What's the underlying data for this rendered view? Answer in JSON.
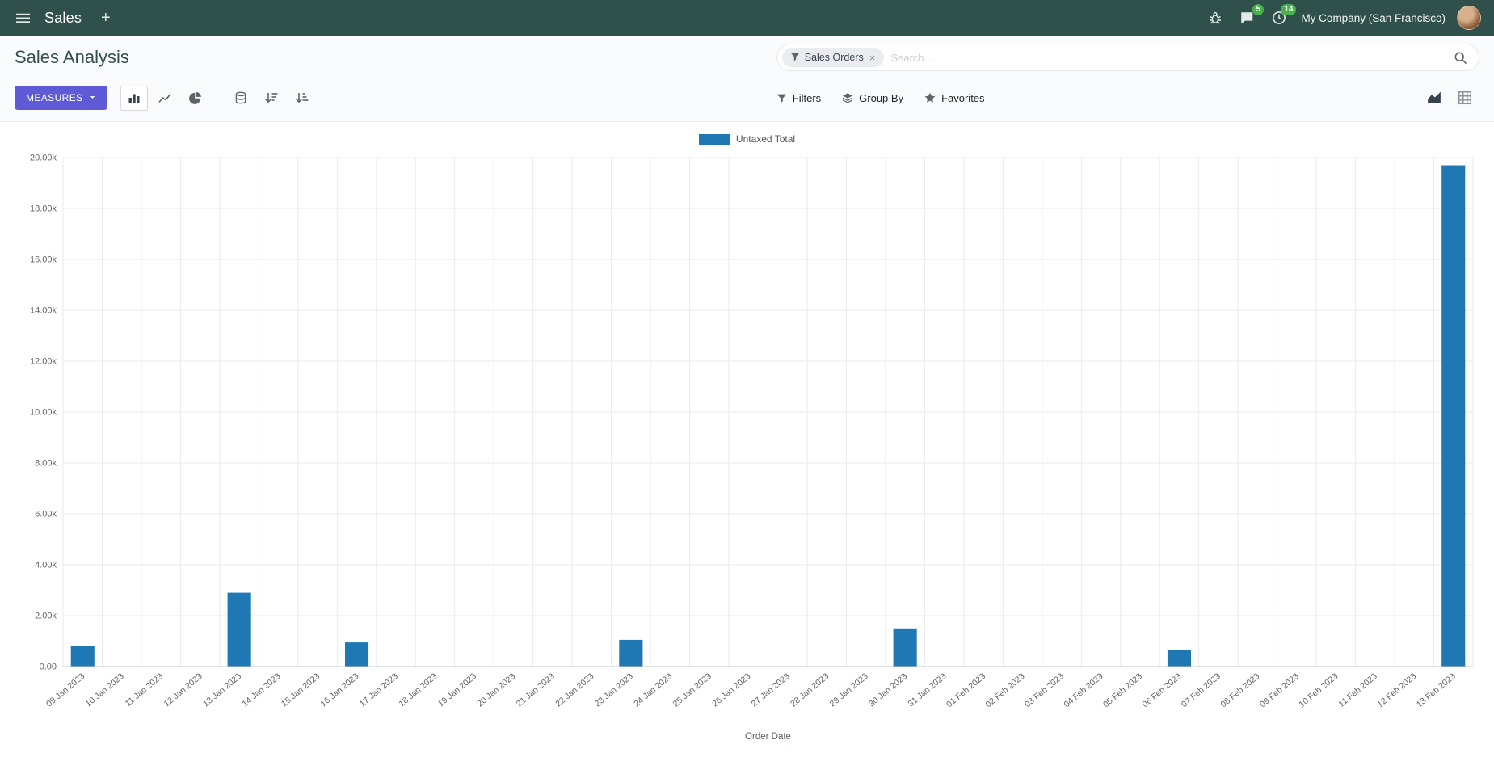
{
  "navbar": {
    "app_name": "Sales",
    "plus_label": "+",
    "company": "My Company (San Francisco)",
    "messages_badge": "5",
    "activities_badge": "14"
  },
  "control_panel": {
    "title": "Sales Analysis",
    "measures_label": "MEASURES",
    "filters_label": "Filters",
    "group_by_label": "Group By",
    "favorites_label": "Favorites",
    "search": {
      "facet_label": "Sales Orders",
      "remove_symbol": "×",
      "placeholder": "Search..."
    }
  },
  "colors": {
    "navbar": "#30504b",
    "primary_button": "#5f5bd7",
    "badge": "#47b14b",
    "bar": "#1f77b4"
  },
  "chart_data": {
    "type": "bar",
    "title": "",
    "xlabel": "Order Date",
    "ylabel": "",
    "ylim": [
      0,
      20000
    ],
    "yticks": [
      "0.00",
      "2.00k",
      "4.00k",
      "6.00k",
      "8.00k",
      "10.00k",
      "12.00k",
      "14.00k",
      "16.00k",
      "18.00k",
      "20.00k"
    ],
    "grid": true,
    "legend_position": "top",
    "categories": [
      "09 Jan 2023",
      "10 Jan 2023",
      "11 Jan 2023",
      "12 Jan 2023",
      "13 Jan 2023",
      "14 Jan 2023",
      "15 Jan 2023",
      "16 Jan 2023",
      "17 Jan 2023",
      "18 Jan 2023",
      "19 Jan 2023",
      "20 Jan 2023",
      "21 Jan 2023",
      "22 Jan 2023",
      "23 Jan 2023",
      "24 Jan 2023",
      "25 Jan 2023",
      "26 Jan 2023",
      "27 Jan 2023",
      "28 Jan 2023",
      "29 Jan 2023",
      "30 Jan 2023",
      "31 Jan 2023",
      "01 Feb 2023",
      "02 Feb 2023",
      "03 Feb 2023",
      "04 Feb 2023",
      "05 Feb 2023",
      "06 Feb 2023",
      "07 Feb 2023",
      "08 Feb 2023",
      "09 Feb 2023",
      "10 Feb 2023",
      "11 Feb 2023",
      "12 Feb 2023",
      "13 Feb 2023"
    ],
    "series": [
      {
        "name": "Untaxed Total",
        "color": "#1f77b4",
        "values": [
          800,
          0,
          0,
          0,
          2900,
          0,
          0,
          950,
          0,
          0,
          0,
          0,
          0,
          0,
          1050,
          0,
          0,
          0,
          0,
          0,
          0,
          1500,
          0,
          0,
          0,
          0,
          0,
          0,
          650,
          0,
          0,
          0,
          0,
          0,
          0,
          19700
        ]
      }
    ]
  }
}
